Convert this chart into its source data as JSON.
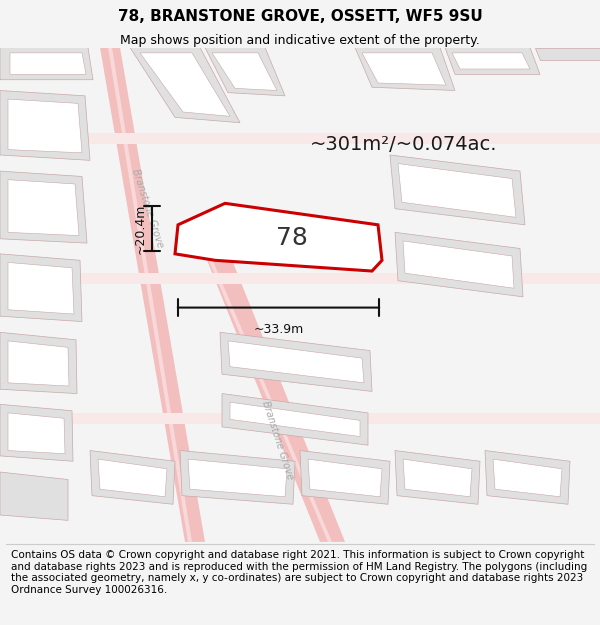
{
  "title": "78, BRANSTONE GROVE, OSSETT, WF5 9SU",
  "subtitle": "Map shows position and indicative extent of the property.",
  "footer": "Contains OS data © Crown copyright and database right 2021. This information is subject to Crown copyright and database rights 2023 and is reproduced with the permission of HM Land Registry. The polygons (including the associated geometry, namely x, y co-ordinates) are subject to Crown copyright and database rights 2023 Ordnance Survey 100026316.",
  "area_label": "~301m²/~0.074ac.",
  "property_number": "78",
  "dim_width_label": "~33.9m",
  "dim_height_label": "~20.4m",
  "street_label": "Branstone Grove",
  "bg_color": "#f4f4f4",
  "map_bg": "#ffffff",
  "plot_border_color": "#cc0000",
  "road_color": "#f2bebe",
  "road_inner_color": "#f8d8d8",
  "building_fill": "#e0e0e0",
  "building_edge": "#c8a8a8",
  "dim_line_color": "#111111",
  "title_fontsize": 11,
  "subtitle_fontsize": 9,
  "footer_fontsize": 7.5,
  "area_label_fontsize": 14,
  "property_fontsize": 18,
  "street_label_fontsize": 7,
  "dim_fontsize": 9
}
